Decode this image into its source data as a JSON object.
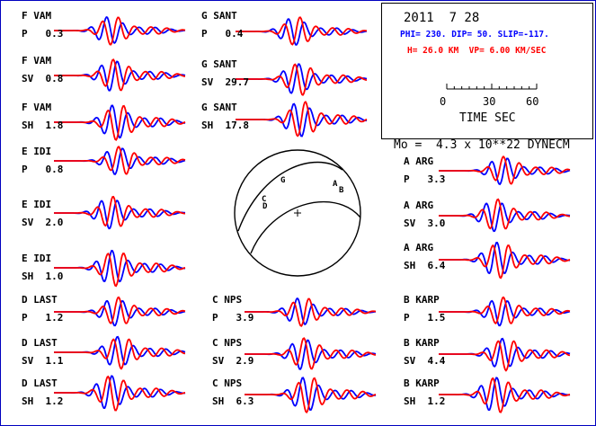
{
  "header": {
    "date": "2011  7 28",
    "line1": "PHI= 230. DIP= 50. SLIP=-117.",
    "line2": "H= 26.0 KM  VP= 6.00 KM/SEC",
    "line1_color": "#0000ff",
    "line2_color": "#ff0000"
  },
  "time_scale": {
    "ticks": [
      "0",
      "30",
      "60"
    ],
    "label": "TIME  SEC"
  },
  "moment": "Mo =  4.3 x 10**22 DYNECM",
  "colors": {
    "observed": "#0000ff",
    "synthetic": "#ff0000",
    "frame": "#0000c0"
  },
  "traces": [
    {
      "station": "F VAM",
      "phase": "P",
      "amp": "0.3"
    },
    {
      "station": "F VAM",
      "phase": "SV",
      "amp": "0.8"
    },
    {
      "station": "F VAM",
      "phase": "SH",
      "amp": "1.8"
    },
    {
      "station": "E IDI",
      "phase": "P",
      "amp": "0.8"
    },
    {
      "station": "E IDI",
      "phase": "SV",
      "amp": "2.0"
    },
    {
      "station": "E IDI",
      "phase": "SH",
      "amp": "1.0"
    },
    {
      "station": "D LAST",
      "phase": "P",
      "amp": "1.2"
    },
    {
      "station": "D LAST",
      "phase": "SV",
      "amp": "1.1"
    },
    {
      "station": "D LAST",
      "phase": "SH",
      "amp": "1.2"
    },
    {
      "station": "G SANT",
      "phase": "P",
      "amp": "0.4"
    },
    {
      "station": "G SANT",
      "phase": "SV",
      "amp": "29.7"
    },
    {
      "station": "G SANT",
      "phase": "SH",
      "amp": "17.8"
    },
    {
      "station": "C NPS",
      "phase": "P",
      "amp": "3.9"
    },
    {
      "station": "C NPS",
      "phase": "SV",
      "amp": "2.9"
    },
    {
      "station": "C NPS",
      "phase": "SH",
      "amp": "6.3"
    },
    {
      "station": "A ARG",
      "phase": "P",
      "amp": "3.3"
    },
    {
      "station": "A ARG",
      "phase": "SV",
      "amp": "3.0"
    },
    {
      "station": "A ARG",
      "phase": "SH",
      "amp": "6.4"
    },
    {
      "station": "B KARP",
      "phase": "P",
      "amp": "1.5"
    },
    {
      "station": "B KARP",
      "phase": "SV",
      "amp": "4.4"
    },
    {
      "station": "B KARP",
      "phase": "SH",
      "amp": "1.2"
    }
  ],
  "beachball_labels": [
    "G",
    "C",
    "D",
    "A",
    "B"
  ]
}
